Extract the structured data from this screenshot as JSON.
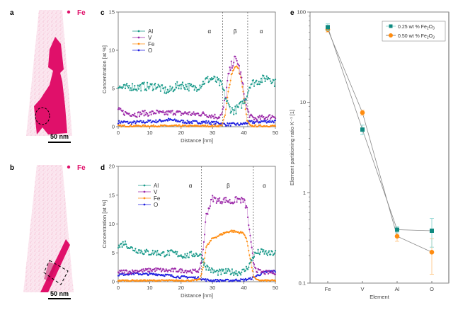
{
  "panels": {
    "a": {
      "letter": "a",
      "legend_label": "Fe",
      "scale_bar": "50 nm"
    },
    "b": {
      "letter": "b",
      "legend_label": "Fe",
      "scale_bar": "50 nm"
    },
    "c": {
      "letter": "c"
    },
    "d": {
      "letter": "d"
    },
    "e": {
      "letter": "e"
    }
  },
  "colors": {
    "Al": "#1a9a8a",
    "V": "#9b27a8",
    "Fe": "#ff8c10",
    "O": "#2020e0",
    "map_fe": "#e0106a",
    "s025": "#0f8a80",
    "s050": "#ff8c10"
  },
  "chart_data": [
    {
      "id": "c",
      "type": "line",
      "title": "",
      "xlabel": "Distance [nm]",
      "ylabel": "Concentration [at %]",
      "xlim": [
        0,
        50
      ],
      "ylim": [
        0,
        15
      ],
      "xticks": [
        0,
        10,
        20,
        30,
        40,
        50
      ],
      "yticks": [
        0,
        5,
        10,
        15
      ],
      "legend": [
        "Al",
        "V",
        "Fe",
        "O"
      ],
      "legend_position": "top-left",
      "phase_boundaries": [
        33.2,
        41.2
      ],
      "phase_labels": [
        {
          "x": 29,
          "text": "α"
        },
        {
          "x": 37.2,
          "text": "β"
        },
        {
          "x": 45.5,
          "text": "α"
        }
      ],
      "profile": {
        "Al": {
          "base": 5.3,
          "inside": 2.2,
          "edges": [
            33.2,
            41.2
          ]
        },
        "V": {
          "base": 1.6,
          "peak": 8.8,
          "center": 37.3,
          "width": 1.9
        },
        "Fe": {
          "base": 0.1,
          "peak": 8.0,
          "center": 37.5,
          "width": 1.7
        },
        "O": {
          "base": 0.6
        }
      },
      "series": [
        {
          "name": "Al",
          "x": [
            0,
            2,
            4,
            6,
            8,
            10,
            12,
            14,
            16,
            18,
            20,
            22,
            24,
            26,
            28,
            30,
            32,
            33,
            34,
            35,
            36,
            37,
            38,
            39,
            40,
            41,
            42,
            44,
            46,
            48,
            50
          ],
          "values": [
            5.2,
            5.0,
            5.3,
            5.1,
            5.3,
            5.2,
            5.4,
            4.9,
            4.6,
            5.2,
            5.5,
            5.3,
            5.0,
            5.4,
            6.1,
            6.3,
            5.8,
            5.3,
            4.0,
            2.8,
            2.2,
            2.1,
            2.4,
            2.8,
            3.3,
            4.2,
            5.6,
            5.9,
            6.2,
            6.5,
            5.7
          ]
        },
        {
          "name": "V",
          "x": [
            0,
            2,
            4,
            6,
            8,
            10,
            12,
            14,
            16,
            18,
            20,
            22,
            24,
            26,
            28,
            30,
            32,
            33,
            34,
            35,
            36,
            37,
            38,
            39,
            40,
            41,
            42,
            44,
            46,
            48,
            50
          ],
          "values": [
            2.2,
            1.8,
            1.7,
            1.6,
            1.8,
            1.7,
            1.9,
            1.7,
            1.8,
            1.9,
            1.7,
            1.8,
            1.6,
            1.7,
            1.6,
            1.4,
            1.3,
            1.6,
            3.5,
            6.5,
            8.0,
            8.8,
            8.5,
            6.8,
            4.5,
            2.3,
            1.3,
            1.0,
            1.2,
            1.3,
            1.4
          ]
        },
        {
          "name": "Fe",
          "x": [
            0,
            2,
            4,
            6,
            8,
            10,
            12,
            14,
            16,
            18,
            20,
            22,
            24,
            26,
            28,
            30,
            32,
            33,
            34,
            35,
            36,
            37,
            38,
            39,
            40,
            41,
            42,
            44,
            46,
            48,
            50
          ],
          "values": [
            0.1,
            0.1,
            0.1,
            0.1,
            0.1,
            0.1,
            0.1,
            0.1,
            0.1,
            0.1,
            0.1,
            0.1,
            0.1,
            0.1,
            0.1,
            0.1,
            0.1,
            0.2,
            1.5,
            4.5,
            6.8,
            7.8,
            7.8,
            6.5,
            3.8,
            0.8,
            0.1,
            0.1,
            0.1,
            0.1,
            0.1
          ]
        },
        {
          "name": "O",
          "x": [
            0,
            2,
            4,
            6,
            8,
            10,
            12,
            14,
            16,
            18,
            20,
            22,
            24,
            26,
            28,
            30,
            32,
            33,
            34,
            35,
            36,
            37,
            38,
            39,
            40,
            41,
            42,
            44,
            46,
            48,
            50
          ],
          "values": [
            0.6,
            0.6,
            0.5,
            0.6,
            0.6,
            0.7,
            0.7,
            0.8,
            0.9,
            0.8,
            0.7,
            0.6,
            0.6,
            0.6,
            0.6,
            0.5,
            0.5,
            0.4,
            0.3,
            0.3,
            0.3,
            0.3,
            0.3,
            0.3,
            0.4,
            0.5,
            0.6,
            0.6,
            0.7,
            0.7,
            0.7
          ]
        }
      ]
    },
    {
      "id": "d",
      "type": "line",
      "title": "",
      "xlabel": "Distance [nm]",
      "ylabel": "Concentration [at %]",
      "xlim": [
        0,
        50
      ],
      "ylim": [
        0,
        20
      ],
      "xticks": [
        0,
        10,
        20,
        30,
        40,
        50
      ],
      "yticks": [
        0,
        5,
        10,
        15,
        20
      ],
      "legend": [
        "Al",
        "V",
        "Fe",
        "O"
      ],
      "legend_position": "top-left",
      "phase_boundaries": [
        26.5,
        43.0
      ],
      "phase_labels": [
        {
          "x": 23,
          "text": "α"
        },
        {
          "x": 35,
          "text": "β"
        },
        {
          "x": 46.5,
          "text": "α"
        }
      ],
      "series": [
        {
          "name": "Al",
          "x": [
            0,
            2,
            4,
            6,
            8,
            10,
            12,
            14,
            16,
            18,
            20,
            22,
            24,
            26,
            27,
            28,
            30,
            32,
            34,
            36,
            38,
            40,
            41,
            42,
            43,
            44,
            46,
            48,
            50
          ],
          "values": [
            6.0,
            6.8,
            5.8,
            5.5,
            5.2,
            5.0,
            5.1,
            4.8,
            5.0,
            4.9,
            4.6,
            4.5,
            4.8,
            4.7,
            3.6,
            2.6,
            1.8,
            1.6,
            1.7,
            1.7,
            1.6,
            1.8,
            2.4,
            3.2,
            4.4,
            5.0,
            5.2,
            4.8,
            5.0
          ]
        },
        {
          "name": "V",
          "x": [
            0,
            2,
            4,
            6,
            8,
            10,
            12,
            14,
            16,
            18,
            20,
            22,
            24,
            26,
            27,
            28,
            30,
            32,
            34,
            36,
            38,
            40,
            41,
            42,
            43,
            44,
            46,
            48,
            50
          ],
          "values": [
            1.6,
            1.8,
            1.7,
            1.9,
            1.9,
            2.0,
            2.1,
            2.0,
            1.9,
            2.0,
            1.9,
            1.9,
            1.8,
            2.0,
            5.5,
            11.5,
            14.5,
            14.0,
            14.2,
            13.8,
            14.3,
            14.0,
            12.5,
            7.5,
            3.5,
            2.0,
            1.6,
            1.6,
            1.6
          ]
        },
        {
          "name": "Fe",
          "x": [
            0,
            2,
            4,
            6,
            8,
            10,
            12,
            14,
            16,
            18,
            20,
            22,
            24,
            26,
            27,
            28,
            30,
            32,
            34,
            36,
            38,
            40,
            41,
            42,
            43,
            44,
            46,
            48,
            50
          ],
          "values": [
            0.2,
            0.2,
            0.2,
            0.2,
            0.2,
            0.2,
            0.2,
            0.2,
            0.2,
            0.2,
            0.2,
            0.2,
            0.2,
            0.4,
            2.5,
            6.0,
            7.5,
            8.0,
            8.5,
            8.8,
            8.6,
            8.4,
            7.0,
            4.0,
            1.0,
            0.3,
            0.2,
            0.2,
            0.2
          ]
        },
        {
          "name": "O",
          "x": [
            0,
            2,
            4,
            6,
            8,
            10,
            12,
            14,
            16,
            18,
            20,
            22,
            24,
            26,
            27,
            28,
            30,
            32,
            34,
            36,
            38,
            40,
            41,
            42,
            43,
            44,
            46,
            48,
            50
          ],
          "values": [
            1.2,
            1.3,
            1.4,
            1.4,
            1.3,
            1.3,
            1.3,
            1.2,
            1.1,
            0.9,
            0.8,
            0.8,
            0.7,
            0.6,
            0.4,
            0.3,
            0.2,
            0.2,
            0.2,
            0.2,
            0.3,
            0.3,
            0.4,
            0.5,
            0.7,
            1.0,
            1.5,
            1.8,
            1.8
          ]
        }
      ]
    },
    {
      "id": "e",
      "type": "scatter",
      "title": "",
      "xlabel": "Element",
      "ylabel": "Element partitioning ratio K⁻¹ [1]",
      "yscale": "log",
      "ylim": [
        0.1,
        100
      ],
      "yticks": [
        0.1,
        1,
        10,
        100
      ],
      "categories": [
        "Fe",
        "V",
        "Al",
        "O"
      ],
      "legend_position": "top-right",
      "series": [
        {
          "name": "0.25 wt % Fe2O3",
          "label_main": "0.25 wt % Fe",
          "sub1": "2",
          "label_mid": "O",
          "sub2": "3",
          "marker": "square",
          "values": [
            68,
            5.0,
            0.39,
            0.38
          ],
          "err_low": [
            62,
            4.4,
            0.36,
            0.25
          ],
          "err_high": [
            74,
            5.6,
            0.42,
            0.52
          ]
        },
        {
          "name": "0.50 wt % Fe2O3",
          "label_main": "0.50 wt % Fe",
          "sub1": "2",
          "label_mid": "O",
          "sub2": "3",
          "marker": "circle",
          "values": [
            64,
            7.7,
            0.33,
            0.22
          ],
          "err_low": [
            60,
            7.2,
            0.29,
            0.125
          ],
          "err_high": [
            68,
            8.2,
            0.38,
            0.31
          ]
        }
      ]
    }
  ]
}
